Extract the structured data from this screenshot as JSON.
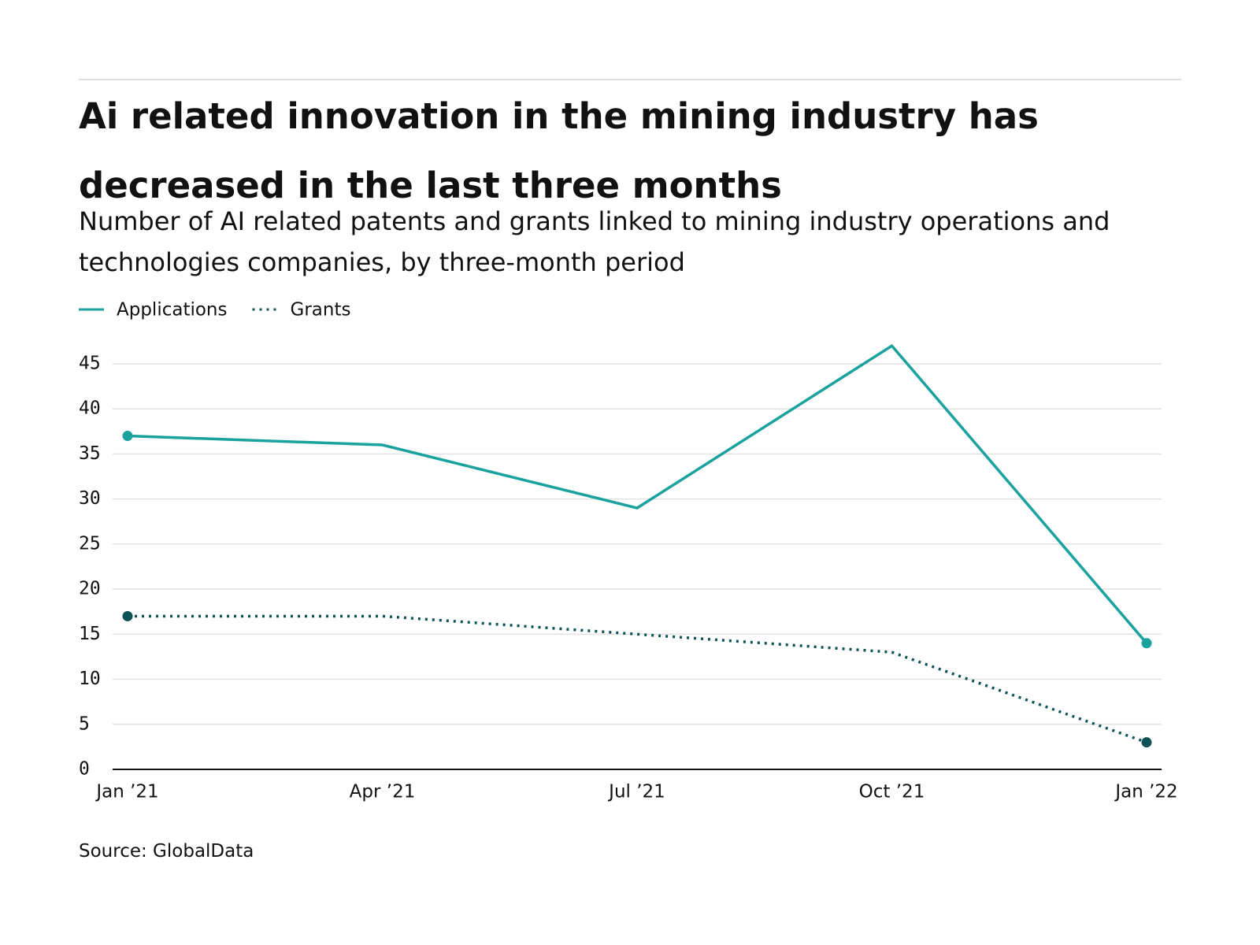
{
  "chart_data": {
    "type": "line",
    "title": "Ai related innovation in the mining industry has decreased in the last three months",
    "subtitle": "Number of AI related patents and grants linked to mining industry operations and technologies companies, by three-month period",
    "source": "Source: GlobalData",
    "categories": [
      "Jan ’21",
      "Apr ’21",
      "Jul ’21",
      "Oct ’21",
      "Jan ’22"
    ],
    "series": [
      {
        "name": "Applications",
        "color": "#1aa39e",
        "dash": "solid",
        "values": [
          37,
          36,
          29,
          47,
          14
        ]
      },
      {
        "name": "Grants",
        "color": "#0d5257",
        "dash": "dotted",
        "values": [
          17,
          17,
          15,
          13,
          3
        ]
      }
    ],
    "ylim": [
      0,
      45
    ],
    "yticks": [
      0,
      5,
      10,
      15,
      20,
      25,
      30,
      35,
      40,
      45
    ],
    "grid": true
  }
}
